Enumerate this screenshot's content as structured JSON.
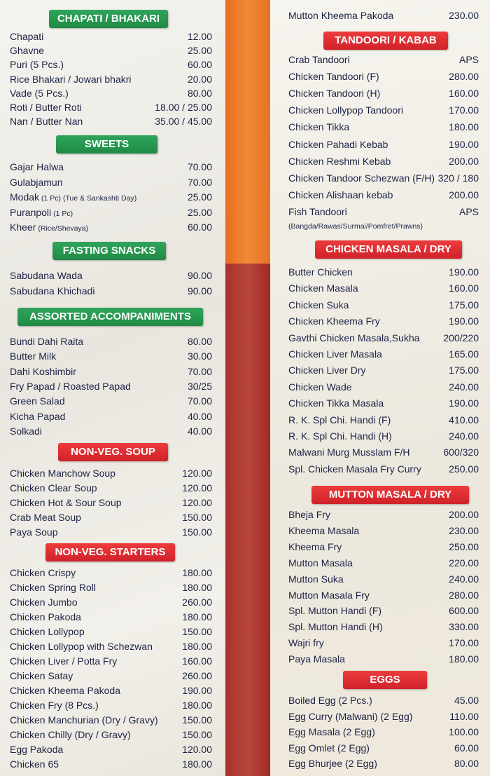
{
  "columns": [
    {
      "sections": [
        {
          "title": "CHAPATI / BHAKARI",
          "items": [
            {
              "name": "Chapati",
              "price": "12.00"
            },
            {
              "name": "Ghavne",
              "price": "25.00"
            },
            {
              "name": "Puri (5 Pcs.)",
              "price": "60.00"
            },
            {
              "name": "Rice Bhakari / Jowari bhakri",
              "price": "20.00"
            },
            {
              "name": "Vade (5 Pcs.)",
              "price": "80.00"
            },
            {
              "name": "Roti / Butter Roti",
              "price": "18.00 / 25.00"
            },
            {
              "name": "Nan / Butter Nan",
              "price": "35.00 / 45.00"
            }
          ]
        },
        {
          "title": "SWEETS",
          "items": [
            {
              "name": "Gajar Halwa",
              "price": "70.00"
            },
            {
              "name": "Gulabjamun",
              "price": "70.00"
            },
            {
              "name": "Modak",
              "note": "(1 Pc) (Tue & Sankashti Day)",
              "price": "25.00"
            },
            {
              "name": "Puranpoli",
              "note": "(1 Pc)",
              "price": "25.00"
            },
            {
              "name": "Kheer",
              "note": "(Rice/Shevaya)",
              "price": "60.00"
            }
          ]
        },
        {
          "title": "FASTING SNACKS",
          "items": [
            {
              "name": "Sabudana Wada",
              "price": "90.00"
            },
            {
              "name": "Sabudana Khichadi",
              "price": "90.00"
            }
          ]
        },
        {
          "title": "ASSORTED ACCOMPANIMENTS",
          "items": [
            {
              "name": "Bundi Dahi Raita",
              "price": "80.00"
            },
            {
              "name": "Butter Milk",
              "price": "30.00"
            },
            {
              "name": "Dahi Koshimbir",
              "price": "70.00"
            },
            {
              "name": "Fry Papad / Roasted Papad",
              "price": "30/25"
            },
            {
              "name": "Green Salad",
              "price": "70.00"
            },
            {
              "name": "Kicha Papad",
              "price": "40.00"
            },
            {
              "name": "Solkadi",
              "price": "40.00"
            }
          ]
        },
        {
          "title": "NON-VEG. SOUP",
          "items": [
            {
              "name": "Chicken Manchow Soup",
              "price": "120.00"
            },
            {
              "name": "Chicken Clear Soup",
              "price": "120.00"
            },
            {
              "name": "Chicken Hot & Sour Soup",
              "price": "120.00"
            },
            {
              "name": "Crab Meat Soup",
              "price": "150.00"
            },
            {
              "name": "Paya Soup",
              "price": "150.00"
            }
          ]
        },
        {
          "title": "NON-VEG. STARTERS",
          "items": [
            {
              "name": "Chicken Crispy",
              "price": "180.00"
            },
            {
              "name": "Chicken Spring Roll",
              "price": "180.00"
            },
            {
              "name": "Chicken Jumbo",
              "price": "260.00"
            },
            {
              "name": "Chicken Pakoda",
              "price": "180.00"
            },
            {
              "name": "Chicken Lollypop",
              "price": "150.00"
            },
            {
              "name": "Chicken Lollypop with Schezwan",
              "price": "180.00"
            },
            {
              "name": "Chicken Liver / Potta Fry",
              "price": "160.00"
            },
            {
              "name": "Chicken Satay",
              "price": "260.00"
            },
            {
              "name": "Chicken Kheema Pakoda",
              "price": "190.00"
            },
            {
              "name": "Chicken Fry (8 Pcs.)",
              "price": "180.00"
            },
            {
              "name": "Chicken Manchurian (Dry / Gravy)",
              "price": "150.00"
            },
            {
              "name": "Chicken Chilly (Dry / Gravy)",
              "price": "150.00"
            },
            {
              "name": "Egg Pakoda",
              "price": "120.00"
            },
            {
              "name": "Chicken 65",
              "price": "180.00"
            }
          ]
        }
      ]
    },
    {
      "sections": [
        {
          "items": [
            {
              "name": "Mutton Kheema Pakoda",
              "price": "230.00"
            }
          ]
        },
        {
          "title": "TANDOORI / KABAB",
          "items": [
            {
              "name": "Crab Tandoori",
              "price": "APS"
            },
            {
              "name": "Chicken Tandoori (F)",
              "price": "280.00"
            },
            {
              "name": "Chicken Tandoori (H)",
              "price": "160.00"
            },
            {
              "name": "Chicken Lollypop Tandoori",
              "price": "170.00"
            },
            {
              "name": "Chicken Tikka",
              "price": "180.00"
            },
            {
              "name": "Chicken Pahadi Kebab",
              "price": "190.00"
            },
            {
              "name": "Chicken Reshmi Kebab",
              "price": "200.00"
            },
            {
              "name": "Chicken Tandoor Schezwan (F/H)",
              "price": "320 / 180"
            },
            {
              "name": "Chicken Alishaan kebab",
              "price": "200.00"
            },
            {
              "name": "Fish Tandoori",
              "price": "APS",
              "detail": "(Bangda/Rawas/Surmai/Pomfret/Prawns)"
            }
          ]
        },
        {
          "title": "CHICKEN MASALA / DRY",
          "items": [
            {
              "name": "Butter Chicken",
              "price": "190.00"
            },
            {
              "name": "Chicken Masala",
              "price": "160.00"
            },
            {
              "name": "Chicken Suka",
              "price": "175.00"
            },
            {
              "name": "Chicken Kheema Fry",
              "price": "190.00"
            },
            {
              "name": "Gavthi Chicken Masala,Sukha",
              "price": "200/220"
            },
            {
              "name": "Chicken Liver Masala",
              "price": "165.00"
            },
            {
              "name": "Chicken Liver Dry",
              "price": "175.00"
            },
            {
              "name": "Chicken Wade",
              "price": "240.00"
            },
            {
              "name": "Chicken Tikka Masala",
              "price": "190.00"
            },
            {
              "name": "R. K. Spl Chi. Handi (F)",
              "price": "410.00"
            },
            {
              "name": "R. K. Spl Chi. Handi (H)",
              "price": "240.00"
            },
            {
              "name": "Malwani Murg Musslam F/H",
              "price": "600/320"
            },
            {
              "name": "Spl. Chicken Masala Fry Curry",
              "price": "250.00"
            }
          ]
        },
        {
          "title": "MUTTON MASALA / DRY",
          "items": [
            {
              "name": "Bheja Fry",
              "price": "200.00"
            },
            {
              "name": "Kheema Masala",
              "price": "230.00"
            },
            {
              "name": "Kheema Fry",
              "price": "250.00"
            },
            {
              "name": "Mutton Masala",
              "price": "220.00"
            },
            {
              "name": "Mutton Suka",
              "price": "240.00"
            },
            {
              "name": "Mutton Masala Fry",
              "price": "280.00"
            },
            {
              "name": "Spl. Mutton Handi (F)",
              "price": "600.00"
            },
            {
              "name": "Spl. Mutton Handi (H)",
              "price": "330.00"
            },
            {
              "name": "Wajri fry",
              "price": "170.00"
            },
            {
              "name": "Paya Masala",
              "price": "180.00"
            }
          ]
        },
        {
          "title": "EGGS",
          "items": [
            {
              "name": "Boiled Egg (2 Pcs.)",
              "price": "45.00"
            },
            {
              "name": "Egg Curry (Malwani) (2 Egg)",
              "price": "110.00"
            },
            {
              "name": "Egg Masala (2 Egg)",
              "price": "100.00"
            },
            {
              "name": "Egg Omlet (2 Egg)",
              "price": "60.00"
            },
            {
              "name": "Egg Bhurjee (2 Egg)",
              "price": "80.00"
            }
          ]
        }
      ]
    }
  ]
}
